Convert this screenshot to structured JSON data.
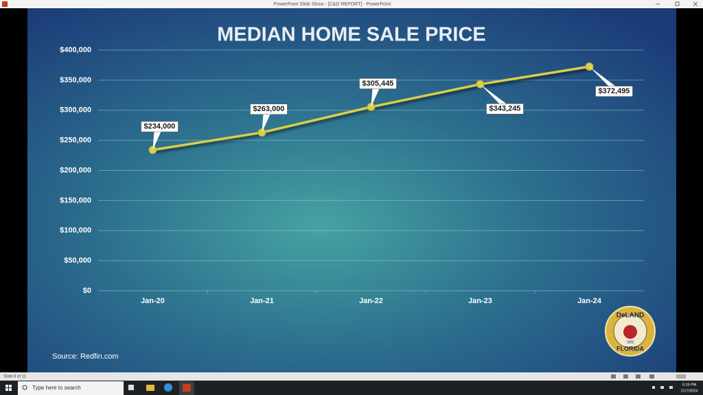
{
  "window": {
    "title": "PowerPoint Slide Show - [C&D REPORT] - PowerPoint"
  },
  "chart_data": {
    "type": "line",
    "title": "MEDIAN HOME SALE PRICE",
    "categories": [
      "Jan-20",
      "Jan-21",
      "Jan-22",
      "Jan-23",
      "Jan-24"
    ],
    "series": [
      {
        "name": "Median Home Sale Price",
        "color": "#d8cf4a",
        "values": [
          234000,
          263000,
          305445,
          343245,
          372495
        ],
        "value_labels": [
          "$234,000",
          "$263,000",
          "$305,445",
          "$343,245",
          "$372,495"
        ]
      }
    ],
    "ylim": [
      0,
      400000
    ],
    "yticks": [
      {
        "value": 0,
        "label": "$0"
      },
      {
        "value": 50000,
        "label": "$50,000"
      },
      {
        "value": 100000,
        "label": "$100,000"
      },
      {
        "value": 150000,
        "label": "$150,000"
      },
      {
        "value": 200000,
        "label": "$200,000"
      },
      {
        "value": 250000,
        "label": "$250,000"
      },
      {
        "value": 300000,
        "label": "$300,000"
      },
      {
        "value": 350000,
        "label": "$350,000"
      },
      {
        "value": 400000,
        "label": "$400,000"
      }
    ],
    "grid": true,
    "source": "Source: Redfin.com"
  },
  "logo": {
    "top": "DeLAND",
    "year": "1882",
    "bottom": "FLORIDA"
  },
  "status_bar": {
    "slide": "Slide 8 of 11"
  },
  "taskbar": {
    "search": "Type here to search",
    "time": "5:16 PM",
    "date": "2/17/2024"
  }
}
